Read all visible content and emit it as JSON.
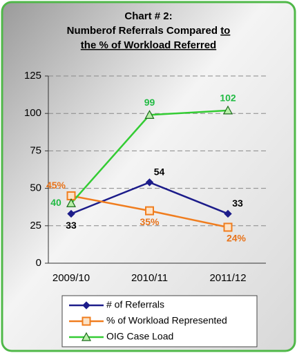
{
  "chart_data": {
    "type": "line",
    "title": [
      "Chart # 2:",
      "Numberof Referrals Compared",
      "to",
      "the % of Workload Referred"
    ],
    "categories": [
      "2009/10",
      "2010/11",
      "2011/12"
    ],
    "ylim": [
      0,
      125
    ],
    "yticks": [
      0,
      25,
      50,
      75,
      100,
      125
    ],
    "grid": true,
    "legend": "bottom",
    "series": [
      {
        "name": "# of Referrals",
        "color": "#1c1c8a",
        "marker": "diamond",
        "values": [
          33,
          54,
          33
        ],
        "label_color": "#000000"
      },
      {
        "name": "% of Workload Represented",
        "color": "#f07d1e",
        "marker": "square",
        "values": [
          45,
          35,
          24
        ],
        "value_labels": [
          "45%",
          "35%",
          "24%"
        ],
        "label_color": "#e8731a"
      },
      {
        "name": "OIG Case Load",
        "color": "#33cc33",
        "marker": "triangle",
        "values": [
          40,
          99,
          102
        ],
        "label_color": "#22bb44"
      }
    ]
  }
}
